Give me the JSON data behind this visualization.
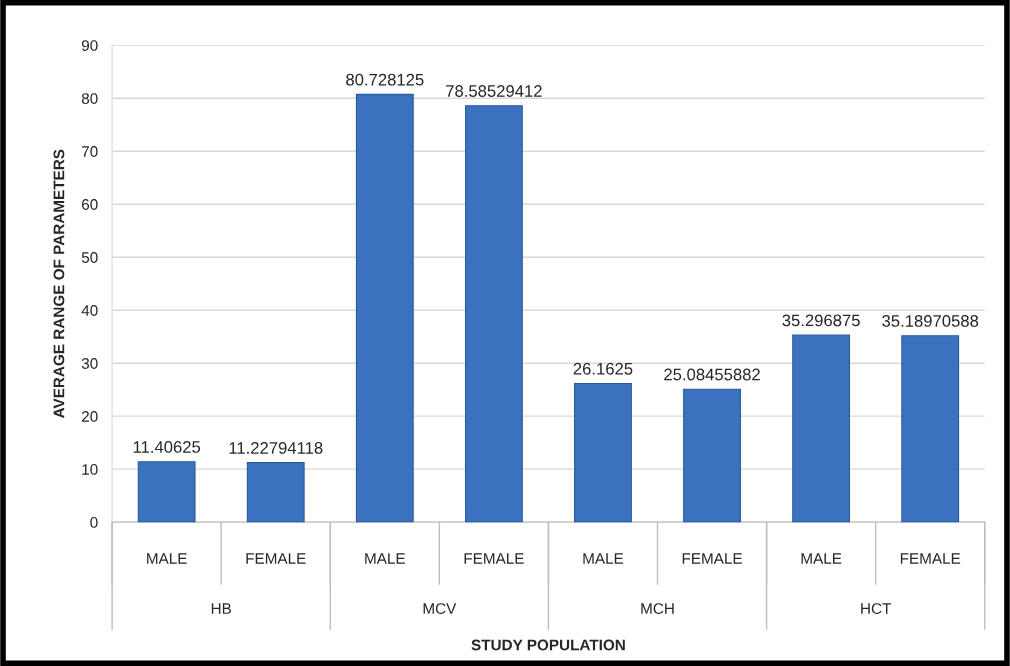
{
  "chart_data": {
    "type": "bar",
    "xlabel": "STUDY POPULATION",
    "ylabel": "AVERAGE RANGE OF PARAMETERS",
    "categories": [
      "MALE",
      "FEMALE",
      "MALE",
      "FEMALE",
      "MALE",
      "FEMALE",
      "MALE",
      "FEMALE"
    ],
    "values": [
      11.40625,
      11.22794118,
      80.728125,
      78.58529412,
      26.1625,
      25.08455882,
      35.296875,
      35.18970588
    ],
    "color": "#3b72c0",
    "ylim": [
      0,
      90
    ],
    "yticks": [
      0,
      10,
      20,
      30,
      40,
      50,
      60,
      70,
      80,
      90
    ],
    "grid": "y",
    "data_labels": true,
    "annotations": [
      "HB",
      "MCV",
      "MCH",
      "HCT"
    ]
  }
}
